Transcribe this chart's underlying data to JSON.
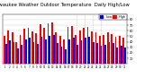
{
  "title": "Milwaukee Weather Outdoor Temperature  Daily High/Low",
  "title_fontsize": 3.8,
  "background_color": "#ffffff",
  "grid_color": "#cccccc",
  "bar_width": 0.4,
  "high_color": "#ff0000",
  "low_color": "#0000ff",
  "legend_high": "High",
  "legend_low": "Low",
  "days": [
    1,
    2,
    3,
    4,
    5,
    6,
    7,
    8,
    9,
    10,
    11,
    12,
    13,
    14,
    15,
    16,
    17,
    18,
    19,
    20,
    21,
    22,
    23,
    24,
    25,
    26,
    27,
    28,
    29,
    30,
    31
  ],
  "highs": [
    50,
    60,
    57,
    40,
    53,
    63,
    65,
    58,
    55,
    71,
    66,
    73,
    75,
    57,
    50,
    44,
    67,
    69,
    52,
    60,
    65,
    67,
    58,
    57,
    50,
    53,
    57,
    54,
    49,
    51,
    47
  ],
  "lows": [
    36,
    43,
    39,
    28,
    34,
    44,
    47,
    40,
    36,
    49,
    45,
    51,
    53,
    38,
    32,
    27,
    45,
    48,
    35,
    42,
    47,
    49,
    40,
    38,
    33,
    35,
    39,
    37,
    30,
    33,
    29
  ],
  "ylim_min": 0,
  "ylim_max": 90,
  "yticks": [
    10,
    20,
    30,
    40,
    50,
    60,
    70,
    80
  ],
  "dotted_lines": [
    18,
    20,
    22,
    24
  ],
  "num_days": 31
}
